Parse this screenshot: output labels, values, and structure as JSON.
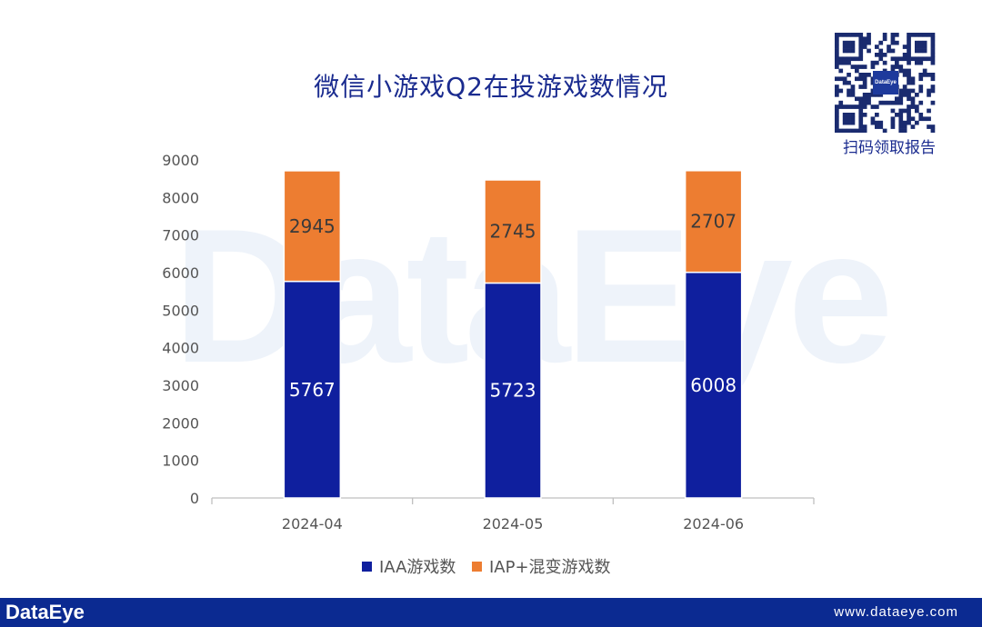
{
  "watermark": "DataEye",
  "qr": {
    "logo_text": "DataEye",
    "caption": "扫码领取报告"
  },
  "footer": {
    "brand": "DataEye",
    "url": "www.dataeye.com"
  },
  "colors": {
    "iaa": "#0f1f9e",
    "iap": "#ed7d31",
    "title": "#1a2b8f",
    "footer": "#0b2a91"
  },
  "chart_data": {
    "type": "bar",
    "stacked": true,
    "title": "微信小游戏Q2在投游戏数情况",
    "categories": [
      "2024-04",
      "2024-05",
      "2024-06"
    ],
    "series": [
      {
        "name": "IAA游戏数",
        "values": [
          5767,
          5723,
          6008
        ]
      },
      {
        "name": "IAP+混变游戏数",
        "values": [
          2945,
          2745,
          2707
        ]
      }
    ],
    "ylim": [
      0,
      9000
    ],
    "yticks": [
      0,
      1000,
      2000,
      3000,
      4000,
      5000,
      6000,
      7000,
      8000,
      9000
    ],
    "xlabel": "",
    "ylabel": "",
    "grid": false,
    "legend": "bottom"
  }
}
